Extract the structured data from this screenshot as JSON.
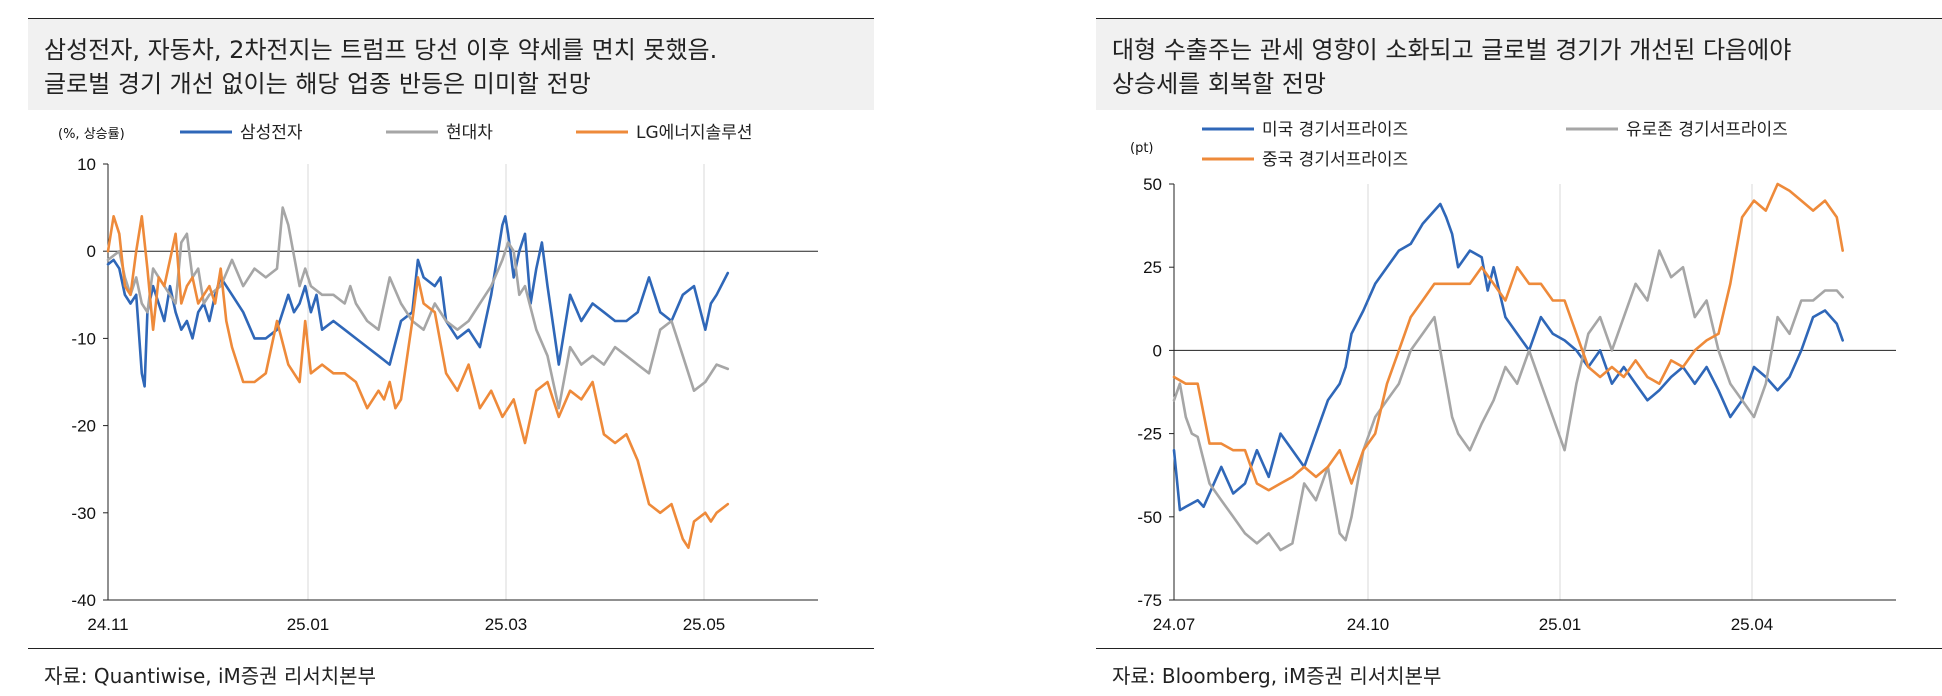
{
  "left": {
    "title_lines": [
      "삼성전자, 자동차, 2차전지는 트럼프 당선 이후 약세를 면치 못했음.",
      "글로벌 경기 개선 없이는 해당 업종 반등은 미미할 전망"
    ],
    "source": "자료: Quantiwise, iM증권 리서치본부",
    "chart_data": {
      "type": "line",
      "ylabel": "(%, 상승률)",
      "ylim": [
        -40,
        10
      ],
      "yticks": [
        10,
        0,
        -10,
        -20,
        -30,
        -40
      ],
      "xticks": [
        "24.11",
        "25.01",
        "25.03",
        "25.05"
      ],
      "x_range": [
        0,
        100
      ],
      "xtick_pos": [
        0,
        30,
        60,
        90
      ],
      "legend": "top",
      "colors": {
        "samsung": "#2f67b8",
        "hyundai": "#a6a6a6",
        "lg": "#ee8a3a"
      },
      "series": [
        {
          "name": "삼성전자",
          "key": "samsung",
          "x": [
            0,
            1,
            2,
            3,
            4,
            5,
            6,
            6.5,
            7,
            8,
            9,
            10,
            11,
            12,
            13,
            14,
            15,
            16,
            17,
            18,
            19,
            20,
            22,
            24,
            26,
            28,
            30,
            32,
            33,
            34,
            35,
            36,
            37,
            38,
            40,
            42,
            44,
            46,
            48,
            50,
            52,
            54,
            55,
            56,
            58,
            59,
            60,
            62,
            64,
            66,
            68,
            70,
            70.5,
            71,
            72,
            73,
            74,
            75,
            76,
            77,
            78,
            80,
            82,
            84,
            86,
            88,
            90,
            92,
            94,
            96,
            97,
            98,
            100,
            102,
            104,
            106,
            107,
            108,
            110
          ],
          "y": [
            -1.5,
            -1,
            -2,
            -5,
            -6,
            -5,
            -14,
            -15.5,
            -7,
            -4,
            -6,
            -8,
            -4,
            -7,
            -9,
            -8,
            -10,
            -7,
            -6,
            -8,
            -5,
            -3,
            -5,
            -7,
            -10,
            -10,
            -9,
            -5,
            -7,
            -6,
            -4,
            -7,
            -5,
            -9,
            -8,
            -9,
            -10,
            -11,
            -12,
            -13,
            -8,
            -7,
            -1,
            -3,
            -4,
            -3,
            -8,
            -10,
            -9,
            -11,
            -5,
            3,
            4,
            2,
            -3,
            0,
            2,
            -6,
            -2,
            1,
            -4,
            -13,
            -5,
            -8,
            -6,
            -7,
            -8,
            -8,
            -7,
            -3,
            -5,
            -7,
            -8,
            -5,
            -4,
            -9,
            -6,
            -5,
            -2.5
          ]
        },
        {
          "name": "현대차",
          "key": "hyundai",
          "x": [
            0,
            2,
            3,
            4,
            5,
            6,
            7,
            8,
            10,
            12,
            13,
            14,
            15,
            16,
            17,
            18,
            20,
            22,
            24,
            26,
            28,
            30,
            31,
            32,
            34,
            35,
            36,
            38,
            40,
            42,
            43,
            44,
            46,
            48,
            50,
            52,
            54,
            56,
            58,
            60,
            62,
            64,
            66,
            68,
            70,
            71,
            72,
            73,
            74,
            76,
            78,
            80,
            82,
            84,
            86,
            88,
            90,
            92,
            94,
            96,
            98,
            100,
            102,
            104,
            106,
            108,
            110
          ],
          "y": [
            -1,
            0,
            -3,
            -5,
            -3,
            -6,
            -7,
            -2,
            -4,
            -6,
            1,
            2,
            -3,
            -2,
            -6,
            -5,
            -4,
            -1,
            -4,
            -2,
            -3,
            -2,
            5,
            3,
            -4,
            -2,
            -4,
            -5,
            -5,
            -6,
            -4,
            -6,
            -8,
            -9,
            -3,
            -6,
            -8,
            -9,
            -6,
            -8,
            -9,
            -8,
            -6,
            -4,
            -1,
            1,
            0,
            -5,
            -4,
            -9,
            -12,
            -18,
            -11,
            -13,
            -12,
            -13,
            -11,
            -12,
            -13,
            -14,
            -9,
            -8,
            -12,
            -16,
            -15,
            -13,
            -13.5
          ]
        },
        {
          "name": "LG에너지솔루션",
          "key": "lg",
          "x": [
            0,
            1,
            2,
            3,
            4,
            5,
            6,
            7,
            8,
            9,
            10,
            11,
            12,
            13,
            14,
            15,
            16,
            17,
            18,
            19,
            20,
            21,
            22,
            24,
            26,
            28,
            30,
            32,
            34,
            35,
            36,
            38,
            40,
            42,
            44,
            46,
            48,
            49,
            50,
            51,
            52,
            54,
            55,
            56,
            58,
            60,
            62,
            64,
            66,
            68,
            70,
            72,
            74,
            76,
            78,
            80,
            82,
            84,
            86,
            88,
            90,
            92,
            94,
            96,
            98,
            100,
            102,
            103,
            104,
            106,
            107,
            108,
            110
          ],
          "y": [
            0,
            4,
            2,
            -4,
            -5,
            0,
            4,
            -2,
            -9,
            -3,
            -4,
            -1,
            2,
            -6,
            -4,
            -3,
            -6,
            -5,
            -4,
            -6,
            -2,
            -8,
            -11,
            -15,
            -15,
            -14,
            -8,
            -13,
            -15,
            -8,
            -14,
            -13,
            -14,
            -14,
            -15,
            -18,
            -16,
            -17,
            -15,
            -18,
            -17,
            -8,
            -3,
            -6,
            -7,
            -14,
            -16,
            -13,
            -18,
            -16,
            -19,
            -17,
            -22,
            -16,
            -15,
            -19,
            -16,
            -17,
            -15,
            -21,
            -22,
            -21,
            -24,
            -29,
            -30,
            -29,
            -33,
            -34,
            -31,
            -30,
            -31,
            -30,
            -29
          ]
        }
      ]
    }
  },
  "right": {
    "title_lines": [
      "대형 수출주는 관세 영향이 소화되고 글로벌 경기가 개선된 다음에야",
      "상승세를 회복할 전망"
    ],
    "source": "자료: Bloomberg, iM증권 리서치본부",
    "chart_data": {
      "type": "line",
      "ylabel": "(pt)",
      "ylim": [
        -75,
        50
      ],
      "yticks": [
        50,
        25,
        0,
        -25,
        -50,
        -75
      ],
      "xticks": [
        "24.07",
        "24.10",
        "25.01",
        "25.04"
      ],
      "x_range": [
        0,
        100
      ],
      "xtick_pos": [
        0,
        30,
        60,
        90
      ],
      "legend": "top",
      "colors": {
        "us": "#2f67b8",
        "euro": "#a6a6a6",
        "china": "#ee8a3a"
      },
      "series": [
        {
          "name": "미국 경기서프라이즈",
          "key": "us",
          "x": [
            0,
            1,
            2,
            3,
            4,
            5,
            6,
            8,
            10,
            12,
            14,
            16,
            18,
            20,
            22,
            24,
            26,
            28,
            29,
            30,
            32,
            34,
            36,
            38,
            40,
            42,
            44,
            45,
            46,
            47,
            48,
            50,
            52,
            53,
            54,
            56,
            58,
            60,
            62,
            64,
            66,
            68,
            70,
            72,
            74,
            76,
            78,
            80,
            82,
            84,
            86,
            88,
            90,
            92,
            94,
            96,
            98,
            100,
            102,
            104,
            106,
            108,
            110,
            112,
            113
          ],
          "y": [
            -30,
            -48,
            -47,
            -46,
            -45,
            -47,
            -43,
            -35,
            -43,
            -40,
            -30,
            -38,
            -25,
            -30,
            -35,
            -25,
            -15,
            -10,
            -5,
            5,
            12,
            20,
            25,
            30,
            32,
            38,
            42,
            44,
            40,
            35,
            25,
            30,
            28,
            18,
            25,
            10,
            5,
            0,
            10,
            5,
            3,
            0,
            -5,
            0,
            -10,
            -5,
            -10,
            -15,
            -12,
            -8,
            -5,
            -10,
            -5,
            -12,
            -20,
            -15,
            -5,
            -8,
            -12,
            -8,
            0,
            10,
            12,
            8,
            3
          ]
        },
        {
          "name": "유로존 경기서프라이즈",
          "key": "euro",
          "x": [
            0,
            1,
            2,
            3,
            4,
            6,
            8,
            10,
            12,
            14,
            16,
            18,
            20,
            22,
            24,
            26,
            28,
            29,
            30,
            32,
            34,
            36,
            38,
            40,
            42,
            44,
            46,
            47,
            48,
            50,
            52,
            54,
            56,
            58,
            60,
            62,
            64,
            66,
            68,
            70,
            72,
            74,
            76,
            78,
            80,
            82,
            84,
            86,
            88,
            90,
            92,
            94,
            96,
            98,
            100,
            102,
            104,
            106,
            108,
            110,
            112,
            113
          ],
          "y": [
            -15,
            -10,
            -20,
            -25,
            -26,
            -40,
            -45,
            -50,
            -55,
            -58,
            -55,
            -60,
            -58,
            -40,
            -45,
            -35,
            -55,
            -57,
            -50,
            -30,
            -20,
            -15,
            -10,
            0,
            5,
            10,
            -10,
            -20,
            -25,
            -30,
            -22,
            -15,
            -5,
            -10,
            0,
            -10,
            -20,
            -30,
            -10,
            5,
            10,
            0,
            10,
            20,
            15,
            30,
            22,
            25,
            10,
            15,
            0,
            -10,
            -15,
            -20,
            -10,
            10,
            5,
            15,
            15,
            18,
            18,
            16
          ]
        },
        {
          "name": "중국 경기서프라이즈",
          "key": "china",
          "x": [
            0,
            2,
            4,
            6,
            8,
            10,
            12,
            14,
            16,
            18,
            20,
            22,
            24,
            26,
            28,
            30,
            32,
            34,
            36,
            38,
            40,
            42,
            44,
            46,
            48,
            50,
            52,
            54,
            56,
            58,
            60,
            62,
            64,
            66,
            68,
            70,
            72,
            74,
            76,
            78,
            80,
            82,
            84,
            86,
            88,
            90,
            92,
            94,
            96,
            98,
            100,
            102,
            104,
            106,
            108,
            110,
            112,
            113
          ],
          "y": [
            -8,
            -10,
            -10,
            -28,
            -28,
            -30,
            -30,
            -40,
            -42,
            -40,
            -38,
            -35,
            -38,
            -35,
            -30,
            -40,
            -30,
            -25,
            -10,
            0,
            10,
            15,
            20,
            20,
            20,
            20,
            25,
            20,
            15,
            25,
            20,
            20,
            15,
            15,
            5,
            -5,
            -8,
            -5,
            -8,
            -3,
            -8,
            -10,
            -3,
            -5,
            0,
            3,
            5,
            20,
            40,
            45,
            42,
            50,
            48,
            45,
            42,
            45,
            40,
            30
          ]
        }
      ]
    }
  }
}
